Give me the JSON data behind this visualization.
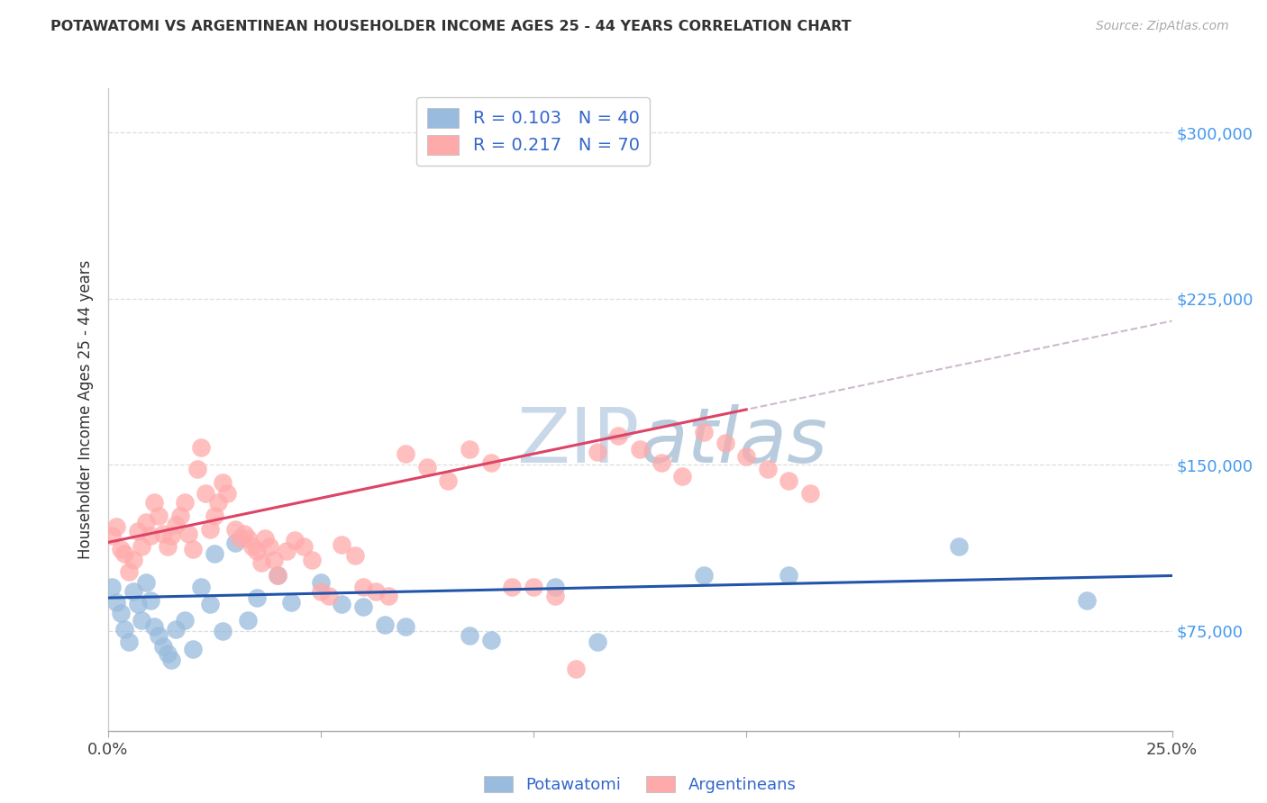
{
  "title": "POTAWATOMI VS ARGENTINEAN HOUSEHOLDER INCOME AGES 25 - 44 YEARS CORRELATION CHART",
  "source": "Source: ZipAtlas.com",
  "ylabel": "Householder Income Ages 25 - 44 years",
  "xlim": [
    0.0,
    0.25
  ],
  "ylim": [
    30000,
    320000
  ],
  "xtick_vals": [
    0.0,
    0.05,
    0.1,
    0.15,
    0.2,
    0.25
  ],
  "xtick_labels": [
    "0.0%",
    "",
    "",
    "",
    "",
    "25.0%"
  ],
  "ytick_vals": [
    75000,
    150000,
    225000,
    300000
  ],
  "ytick_labels": [
    "$75,000",
    "$150,000",
    "$225,000",
    "$300,000"
  ],
  "blue_color": "#99BBDD",
  "pink_color": "#FFAAAA",
  "blue_edge": "#6699CC",
  "pink_edge": "#FF8899",
  "blue_line_color": "#2255AA",
  "pink_line_color": "#DD4466",
  "dashed_color": "#CCBBCC",
  "grid_color": "#DDDDDD",
  "watermark_color": "#C8D8E8",
  "legend_R_blue": "R = 0.103",
  "legend_N_blue": "N = 40",
  "legend_R_pink": "R = 0.217",
  "legend_N_pink": "N = 70",
  "blue_label": "Potawatomi",
  "pink_label": "Argentineans",
  "background_color": "#FFFFFF",
  "blue_x": [
    0.001,
    0.002,
    0.003,
    0.004,
    0.005,
    0.006,
    0.007,
    0.008,
    0.009,
    0.01,
    0.011,
    0.012,
    0.013,
    0.014,
    0.015,
    0.016,
    0.018,
    0.02,
    0.022,
    0.024,
    0.025,
    0.027,
    0.03,
    0.033,
    0.035,
    0.04,
    0.043,
    0.05,
    0.055,
    0.06,
    0.065,
    0.07,
    0.085,
    0.09,
    0.105,
    0.115,
    0.14,
    0.16,
    0.2,
    0.23
  ],
  "blue_y": [
    95000,
    88000,
    83000,
    76000,
    70000,
    93000,
    87000,
    80000,
    97000,
    89000,
    77000,
    73000,
    68000,
    65000,
    62000,
    76000,
    80000,
    67000,
    95000,
    87000,
    110000,
    75000,
    115000,
    80000,
    90000,
    100000,
    88000,
    97000,
    87000,
    86000,
    78000,
    77000,
    73000,
    71000,
    95000,
    70000,
    100000,
    100000,
    113000,
    89000
  ],
  "pink_x": [
    0.001,
    0.002,
    0.003,
    0.004,
    0.005,
    0.006,
    0.007,
    0.008,
    0.009,
    0.01,
    0.011,
    0.012,
    0.013,
    0.014,
    0.015,
    0.016,
    0.017,
    0.018,
    0.019,
    0.02,
    0.021,
    0.022,
    0.023,
    0.024,
    0.025,
    0.026,
    0.027,
    0.028,
    0.03,
    0.031,
    0.032,
    0.033,
    0.034,
    0.035,
    0.036,
    0.037,
    0.038,
    0.039,
    0.04,
    0.042,
    0.044,
    0.046,
    0.048,
    0.05,
    0.052,
    0.055,
    0.058,
    0.06,
    0.063,
    0.066,
    0.07,
    0.075,
    0.08,
    0.085,
    0.09,
    0.095,
    0.1,
    0.105,
    0.11,
    0.115,
    0.12,
    0.125,
    0.13,
    0.135,
    0.14,
    0.145,
    0.15,
    0.155,
    0.16,
    0.165
  ],
  "pink_y": [
    118000,
    122000,
    112000,
    110000,
    102000,
    107000,
    120000,
    113000,
    124000,
    118000,
    133000,
    127000,
    119000,
    113000,
    118000,
    123000,
    127000,
    133000,
    119000,
    112000,
    148000,
    158000,
    137000,
    121000,
    127000,
    133000,
    142000,
    137000,
    121000,
    117000,
    119000,
    117000,
    113000,
    111000,
    106000,
    117000,
    113000,
    107000,
    100000,
    111000,
    116000,
    113000,
    107000,
    93000,
    91000,
    114000,
    109000,
    95000,
    93000,
    91000,
    155000,
    149000,
    143000,
    157000,
    151000,
    95000,
    95000,
    91000,
    58000,
    156000,
    163000,
    157000,
    151000,
    145000,
    165000,
    160000,
    154000,
    148000,
    143000,
    137000
  ]
}
